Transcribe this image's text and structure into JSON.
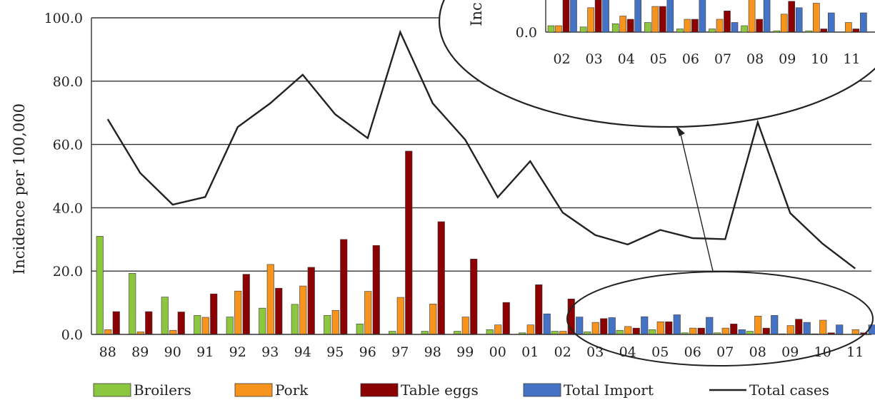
{
  "chart_data": {
    "type": "bar",
    "ylabel": "Incidence per 100,000",
    "ylim": [
      0,
      100
    ],
    "yticks": [
      "0.0",
      "20.0",
      "40.0",
      "60.0",
      "80.0",
      "100.0"
    ],
    "categories": [
      "88",
      "89",
      "90",
      "91",
      "92",
      "93",
      "94",
      "95",
      "96",
      "97",
      "98",
      "99",
      "00",
      "01",
      "02",
      "03",
      "04",
      "05",
      "06",
      "07",
      "08",
      "09",
      "10",
      "11"
    ],
    "series": [
      {
        "name": "Broilers",
        "color": "#8dc63f",
        "values": [
          31.0,
          19.3,
          11.8,
          6.0,
          5.5,
          8.3,
          9.5,
          6.0,
          3.3,
          1.0,
          1.0,
          1.0,
          1.5,
          0.5,
          1.0,
          0.8,
          1.3,
          1.5,
          0.5,
          0.5,
          1.0,
          0.2,
          0.2,
          0.0
        ]
      },
      {
        "name": "Pork",
        "color": "#f7941d",
        "values": [
          1.5,
          0.8,
          1.3,
          5.4,
          13.7,
          22.1,
          15.3,
          7.6,
          13.6,
          11.7,
          9.6,
          5.5,
          3.0,
          3.0,
          1.0,
          3.8,
          2.5,
          4.0,
          2.0,
          2.0,
          5.8,
          2.8,
          4.5,
          1.5
        ]
      },
      {
        "name": "Table eggs",
        "color": "#8b0000",
        "values": [
          7.2,
          7.2,
          7.1,
          12.8,
          19.0,
          14.6,
          21.2,
          30.0,
          28.1,
          57.9,
          35.6,
          23.8,
          10.1,
          15.7,
          11.2,
          5.0,
          2.0,
          4.0,
          2.0,
          3.3,
          2.0,
          4.8,
          0.5,
          0.5
        ]
      },
      {
        "name": "Total Import",
        "color": "#4472c4",
        "values": [
          0,
          0,
          0,
          0,
          0,
          0,
          0,
          0,
          0,
          0,
          0,
          0,
          0,
          6.5,
          5.5,
          5.3,
          5.6,
          6.2,
          5.4,
          1.5,
          6.0,
          3.8,
          3.0,
          3.0
        ]
      }
    ],
    "line": {
      "name": "Total cases",
      "color": "#222222",
      "values": [
        68.0,
        51.0,
        41.0,
        43.4,
        65.5,
        73.0,
        82.0,
        69.5,
        62.0,
        95.5,
        73.0,
        61.5,
        43.3,
        54.7,
        38.5,
        31.4,
        28.4,
        33.0,
        30.4,
        30.1,
        67.0,
        38.3,
        28.6,
        20.8
      ]
    },
    "inset": {
      "categories": [
        "02",
        "03",
        "04",
        "05",
        "06",
        "07",
        "08",
        "09",
        "10",
        "11"
      ],
      "ytick_visible": "0.0",
      "ylabel_fragment": "Inc"
    },
    "legend": {
      "placement": "bottom",
      "entries": [
        "Broilers",
        "Pork",
        "Table eggs",
        "Total Import",
        "Total cases"
      ]
    }
  }
}
